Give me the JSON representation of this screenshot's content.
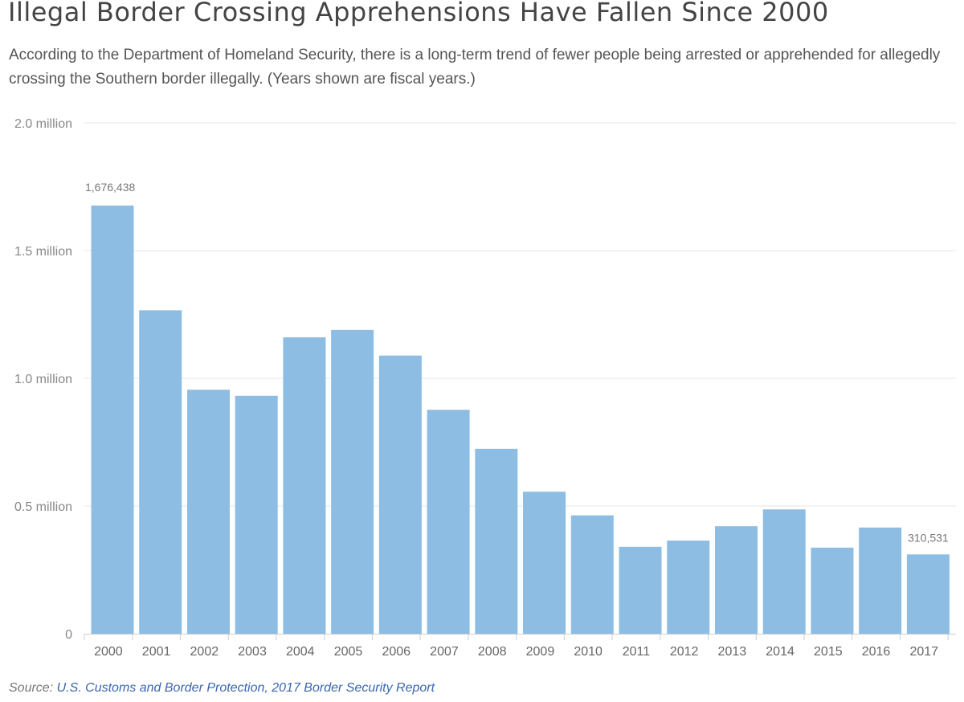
{
  "header": {
    "title": "Illegal Border Crossing Apprehensions Have Fallen Since 2000",
    "subtitle": "According to the Department of Homeland Security, there is a long-term trend of fewer people being arrested or apprehended for allegedly crossing the Southern border illegally. (Years shown are fiscal years.)"
  },
  "footer": {
    "source_label": "Source:",
    "source_link": "U.S. Customs and Border Protection, 2017 Border Security Report"
  },
  "chart_data": {
    "type": "bar",
    "title": "Illegal Border Crossing Apprehensions Have Fallen Since 2000",
    "xlabel": "",
    "ylabel": "",
    "categories": [
      "2000",
      "2001",
      "2002",
      "2003",
      "2004",
      "2005",
      "2006",
      "2007",
      "2008",
      "2009",
      "2010",
      "2011",
      "2012",
      "2013",
      "2014",
      "2015",
      "2016",
      "2017"
    ],
    "values": [
      1676438,
      1266214,
      955310,
      931557,
      1160395,
      1189075,
      1089092,
      876704,
      723825,
      556041,
      463382,
      340252,
      364768,
      420789,
      486651,
      337117,
      415816,
      310531
    ],
    "ylim": [
      0,
      2000000
    ],
    "yticks": [
      0,
      500000,
      1000000,
      1500000,
      2000000
    ],
    "ytick_labels": [
      "0",
      "0.5 million",
      "1.0 million",
      "1.5 million",
      "2.0 million"
    ],
    "data_labels": [
      {
        "category": "2000",
        "text": "1,676,438"
      },
      {
        "category": "2017",
        "text": "310,531"
      }
    ],
    "grid": true,
    "colors": {
      "bar": "#8dbde3",
      "grid": "#e4e4e4",
      "axis": "#cccccc",
      "tick_text": "#888888",
      "category_text": "#666666",
      "label_text": "#777777"
    }
  }
}
